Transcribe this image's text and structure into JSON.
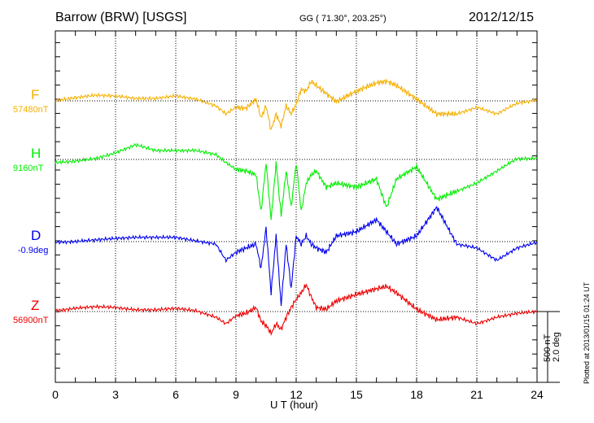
{
  "chart_data": {
    "type": "line",
    "title": "Barrow (BRW)  [USGS]",
    "coords": "GG ( 71.30°, 203.25°)",
    "date": "2012/12/15",
    "xlabel": "U T (hour)",
    "xlim": [
      0,
      24
    ],
    "xticks": [
      "0",
      "3",
      "6",
      "9",
      "12",
      "15",
      "18",
      "21",
      "24"
    ],
    "scale_bar": [
      "500 nT",
      "2.0 deg"
    ],
    "plotted_note": "Plotted at 2013/01/15 01:24 UT",
    "grid": true,
    "x": [
      0,
      1,
      2,
      3,
      4,
      5,
      6,
      7,
      8,
      8.5,
      9,
      9.5,
      10,
      10.25,
      10.5,
      10.75,
      11,
      11.25,
      11.5,
      11.75,
      12,
      12.25,
      12.5,
      12.75,
      13,
      13.5,
      14,
      15,
      16,
      16.5,
      17,
      18,
      19,
      20,
      21,
      22,
      23,
      24
    ],
    "series": [
      {
        "name": "F",
        "baseline_label": "57480nT",
        "unit": "nT",
        "color": "#f5b000",
        "values": [
          0,
          23,
          40,
          35,
          17,
          17,
          35,
          12,
          -35,
          -92,
          -46,
          -52,
          12,
          -121,
          -35,
          -207,
          -92,
          -178,
          -35,
          -92,
          -23,
          81,
          69,
          138,
          109,
          52,
          -6,
          69,
          127,
          138,
          109,
          12,
          -92,
          -92,
          -46,
          -92,
          -17,
          6
        ]
      },
      {
        "name": "H",
        "baseline_label": "9160nT",
        "unit": "nT",
        "color": "#00ee00",
        "values": [
          -23,
          -12,
          6,
          46,
          104,
          63,
          63,
          63,
          35,
          -23,
          -69,
          -81,
          -109,
          -368,
          -23,
          -425,
          -23,
          -397,
          -81,
          -339,
          -23,
          -368,
          -167,
          -109,
          -81,
          -196,
          -167,
          -196,
          -138,
          -339,
          -138,
          -52,
          -282,
          -224,
          -167,
          -81,
          6,
          6
        ]
      },
      {
        "name": "D",
        "baseline_label": "-0.9deg",
        "unit": "deg",
        "color": "#0000ee",
        "values": [
          -0.02,
          0,
          0.05,
          0.09,
          0.12,
          0.12,
          0.12,
          0.02,
          -0.07,
          -0.53,
          -0.3,
          -0.18,
          -0.07,
          -0.76,
          0.39,
          -1.45,
          0.16,
          -1.8,
          -0.07,
          -1.33,
          0.16,
          -0.07,
          0.16,
          -0.07,
          -0.18,
          -0.3,
          0.16,
          0.28,
          0.62,
          0.28,
          -0.07,
          0.16,
          0.97,
          -0.07,
          -0.18,
          -0.53,
          -0.18,
          -0.02
        ]
      },
      {
        "name": "Z",
        "baseline_label": "56900nT",
        "unit": "nT",
        "color": "#ee0000",
        "values": [
          6,
          23,
          35,
          29,
          12,
          12,
          23,
          6,
          -40,
          -86,
          -29,
          -12,
          29,
          -69,
          -98,
          -155,
          -86,
          -127,
          -40,
          29,
          86,
          132,
          190,
          104,
          29,
          17,
          75,
          121,
          161,
          178,
          132,
          17,
          -58,
          -40,
          -86,
          -40,
          -12,
          0
        ]
      }
    ]
  }
}
